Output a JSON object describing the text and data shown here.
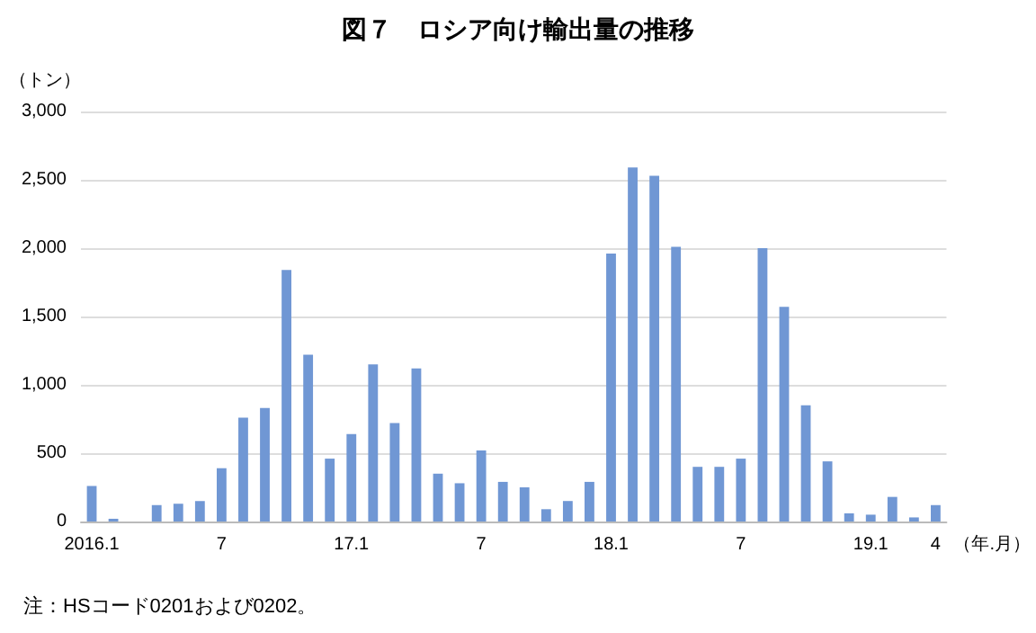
{
  "chart_data": {
    "type": "bar",
    "title": "図７　ロシア向け輸出量の推移",
    "ylabel": "（トン）",
    "xlabel": "（年.月）",
    "annotations": [
      "注：HSコード0201および0202。"
    ],
    "categories": [
      "2016.1",
      null,
      null,
      null,
      null,
      null,
      "7",
      null,
      null,
      null,
      null,
      null,
      "17.1",
      null,
      null,
      null,
      null,
      null,
      "7",
      null,
      null,
      null,
      null,
      null,
      "18.1",
      null,
      null,
      null,
      null,
      null,
      "7",
      null,
      null,
      null,
      null,
      null,
      "19.1",
      null,
      null,
      "4"
    ],
    "values": [
      260,
      20,
      0,
      120,
      130,
      150,
      390,
      760,
      830,
      1840,
      1220,
      460,
      640,
      1150,
      720,
      1120,
      350,
      280,
      520,
      290,
      250,
      90,
      150,
      290,
      1960,
      2590,
      2530,
      2010,
      400,
      400,
      460,
      2000,
      1570,
      850,
      440,
      60,
      50,
      180,
      30,
      120
    ],
    "color": "#7097d4",
    "ylim": [
      0,
      3000
    ],
    "yticks": [
      0,
      500,
      {
        "value": 1000,
        "label": "1,000"
      },
      {
        "value": 1500,
        "label": "1,500"
      },
      {
        "value": 2000,
        "label": "2,000"
      },
      {
        "value": 2500,
        "label": "2,500"
      },
      {
        "value": 3000,
        "label": "3,000"
      }
    ],
    "grid": "y"
  }
}
